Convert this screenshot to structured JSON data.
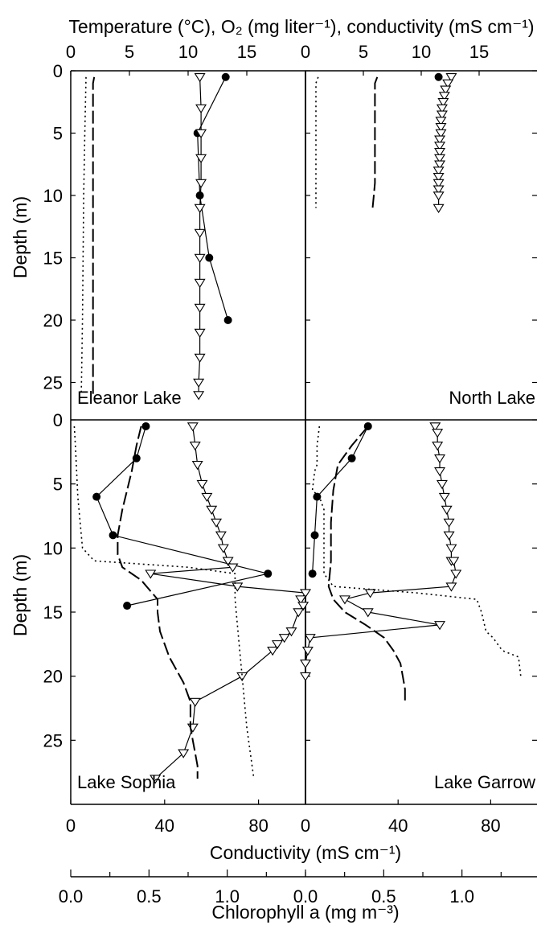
{
  "figure": {
    "top_axis_label": "Temperature (°C), O₂ (mg liter⁻¹), conductivity (mS cm⁻¹)",
    "bottom_axis_label_conductivity": "Conductivity (mS cm⁻¹)",
    "bottom_axis_label_chlorophyll": "Chlorophyll a (mg m⁻³)",
    "y_axis_label": "Depth (m)"
  },
  "chart_data": [
    {
      "type": "line",
      "panel": "Eleanor Lake",
      "title": "Eleanor Lake",
      "title_position": "bottom-left",
      "x_axis": "top",
      "xlabel": "Temperature (°C), O₂ (mg liter⁻¹), conductivity (mS cm⁻¹)",
      "xlim": [
        0,
        20
      ],
      "x_ticks": [
        0,
        5,
        10,
        15
      ],
      "ylabel": "Depth (m)",
      "ylim": [
        0,
        28
      ],
      "y_inverted": true,
      "y_ticks": [
        0,
        5,
        10,
        15,
        20,
        25
      ],
      "grid": false,
      "series": [
        {
          "style": "filled-circle",
          "x": [
            13.2,
            10.8,
            11.0,
            11.8,
            13.4
          ],
          "y": [
            0.5,
            5,
            10,
            15,
            20
          ]
        },
        {
          "style": "open-triangle",
          "x": [
            11.0,
            11.1,
            11.1,
            11.1,
            11.1,
            11.0,
            11.0,
            11.0,
            11.0,
            11.0,
            11.0,
            11.0,
            10.9,
            10.9
          ],
          "y": [
            0.5,
            3,
            5,
            7,
            9,
            11,
            13,
            15,
            17,
            19,
            21,
            23,
            25,
            26
          ]
        },
        {
          "style": "long-dash",
          "x": [
            2.0,
            1.9,
            1.9,
            1.9,
            1.9
          ],
          "y": [
            0.5,
            1,
            10,
            20,
            26
          ]
        },
        {
          "style": "dotted",
          "x": [
            1.3,
            1.2,
            1.1,
            1.0,
            0.9
          ],
          "y": [
            0.5,
            5,
            10,
            20,
            26
          ]
        }
      ]
    },
    {
      "type": "line",
      "panel": "North Lake",
      "title": "North Lake",
      "title_position": "bottom-right",
      "x_axis": "top",
      "xlabel": "Temperature (°C), O₂ (mg liter⁻¹), conductivity (mS cm⁻¹)",
      "xlim": [
        0,
        20
      ],
      "x_ticks": [
        0,
        5,
        10,
        15
      ],
      "ylim": [
        0,
        28
      ],
      "y_inverted": true,
      "grid": false,
      "series": [
        {
          "style": "filled-circle",
          "x": [
            11.5
          ],
          "y": [
            0.5
          ]
        },
        {
          "style": "open-triangle",
          "x": [
            12.6,
            12.3,
            12.1,
            12.0,
            11.9,
            11.8,
            11.8,
            11.7,
            11.7,
            11.7,
            11.6,
            11.6,
            11.6,
            11.6,
            11.6,
            11.5,
            11.5,
            11.5,
            11.5,
            11.5,
            11.5
          ],
          "y": [
            0.5,
            1,
            1.5,
            2,
            2.5,
            3,
            3.5,
            4,
            4.5,
            5,
            5.5,
            6,
            6.5,
            7,
            7.5,
            8,
            8.5,
            9,
            9.5,
            10,
            11
          ]
        },
        {
          "style": "long-dash",
          "x": [
            6.2,
            6.0,
            6.0,
            6.0,
            5.9,
            5.8
          ],
          "y": [
            0.5,
            1,
            5,
            9,
            10,
            11
          ]
        },
        {
          "style": "dotted",
          "x": [
            1.1,
            0.9,
            0.9,
            0.9
          ],
          "y": [
            0.5,
            1,
            6,
            11
          ]
        }
      ]
    },
    {
      "type": "line",
      "panel": "Lake Sophia",
      "title": "Lake Sophia",
      "title_position": "bottom-left",
      "x_axis": "bottom",
      "xlabel": "Conductivity (mS cm⁻¹)",
      "xlim": [
        0,
        100
      ],
      "x_ticks": [
        0,
        40,
        80
      ],
      "secondary_x_axis": {
        "label": "Chlorophyll a (mg m⁻³)",
        "xlim": [
          0,
          1.5
        ],
        "ticks": [
          0.0,
          0.5,
          1.0
        ]
      },
      "ylabel": "Depth (m)",
      "ylim": [
        0,
        30
      ],
      "y_inverted": true,
      "y_ticks": [
        0,
        5,
        10,
        15,
        20,
        25
      ],
      "grid": false,
      "series": [
        {
          "style": "filled-circle",
          "x": [
            32,
            28,
            11,
            18,
            84,
            24
          ],
          "y": [
            0.5,
            3,
            6,
            9,
            12,
            14.5
          ]
        },
        {
          "style": "open-triangle",
          "x": [
            52,
            53,
            54,
            56,
            58,
            60,
            62,
            64,
            65,
            67,
            69,
            34,
            71,
            100,
            98,
            99,
            97,
            94,
            91,
            88,
            86,
            73,
            53,
            52,
            48,
            36
          ],
          "y": [
            0.5,
            2,
            3.5,
            5,
            6,
            7,
            8,
            9,
            10,
            11,
            11.5,
            12,
            13,
            13.5,
            14,
            14.5,
            15,
            16.5,
            17,
            17.5,
            18,
            20,
            22,
            24,
            26,
            28
          ]
        },
        {
          "style": "long-dash",
          "x": [
            30,
            28,
            26,
            22,
            20,
            20,
            22,
            30,
            37,
            37,
            38,
            42,
            48,
            51,
            51,
            52,
            53,
            54,
            54
          ],
          "y": [
            0.5,
            2,
            4,
            7,
            9,
            10.5,
            11.5,
            12.5,
            14,
            15,
            16.5,
            18.5,
            20.5,
            22,
            24,
            25,
            26,
            27,
            28
          ]
        },
        {
          "style": "dotted",
          "x": [
            1.5,
            2.0,
            2.5,
            3.0,
            4.0,
            5.0,
            10,
            50,
            70,
            70,
            71,
            72,
            73,
            75,
            78
          ],
          "y": [
            0.5,
            2,
            4,
            6,
            8,
            10,
            11,
            11.5,
            12,
            14,
            16,
            18,
            20,
            24,
            28
          ]
        }
      ]
    },
    {
      "type": "line",
      "panel": "Lake Garrow",
      "title": "Lake Garrow",
      "title_position": "bottom-right",
      "x_axis": "bottom",
      "xlabel": "Conductivity (mS cm⁻¹)",
      "xlim": [
        0,
        100
      ],
      "x_ticks": [
        0,
        40,
        80
      ],
      "secondary_x_axis": {
        "label": "Chlorophyll a (mg m⁻³)",
        "xlim": [
          0,
          1.5
        ],
        "ticks": [
          0.0,
          0.5,
          1.0
        ]
      },
      "ylim": [
        0,
        30
      ],
      "y_inverted": true,
      "grid": false,
      "series": [
        {
          "style": "filled-circle",
          "x": [
            27,
            20,
            5,
            4,
            3
          ],
          "y": [
            0.5,
            3,
            6,
            9,
            12
          ]
        },
        {
          "style": "open-triangle",
          "x": [
            56,
            57,
            57,
            58,
            58,
            59,
            60,
            61,
            62,
            62,
            63,
            63,
            64,
            65,
            63,
            28,
            17,
            27,
            58,
            2,
            1,
            0,
            0
          ],
          "y": [
            0.5,
            1,
            2,
            3,
            4,
            5,
            6,
            7,
            8,
            9,
            10,
            11,
            11,
            12,
            13,
            13.5,
            14,
            15,
            16,
            17,
            18,
            19,
            20
          ]
        },
        {
          "style": "long-dash",
          "x": [
            27,
            20,
            14,
            12,
            11,
            11,
            10,
            12,
            17,
            26,
            34,
            38,
            41,
            42,
            43,
            43
          ],
          "y": [
            0.5,
            2,
            3.5,
            5.5,
            8,
            11,
            13,
            14,
            15,
            16,
            17,
            18,
            19,
            20,
            21,
            22
          ]
        },
        {
          "style": "dotted",
          "x": [
            6,
            5,
            5,
            4,
            3,
            6,
            8,
            8,
            12,
            48,
            74,
            76,
            78,
            81,
            85,
            92,
            93
          ],
          "y": [
            0.5,
            2,
            3.5,
            4,
            5.5,
            6,
            7,
            12,
            13,
            13.5,
            14,
            15,
            16.5,
            17,
            18,
            18.5,
            20
          ]
        }
      ]
    }
  ]
}
